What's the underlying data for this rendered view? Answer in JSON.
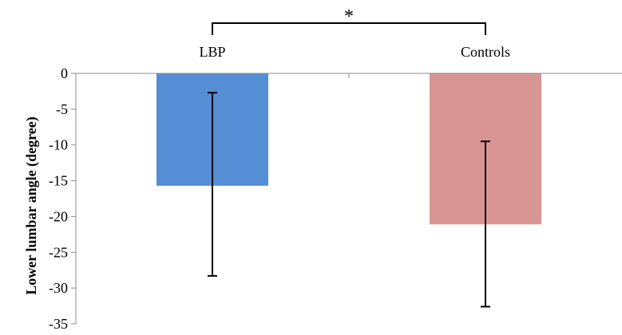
{
  "chart_data": {
    "type": "bar",
    "categories": [
      "LBP",
      "Controls"
    ],
    "values": [
      -15.7,
      -21.1
    ],
    "error_low": [
      -28.3,
      -32.6
    ],
    "error_high": [
      -2.7,
      -9.5
    ],
    "ylabel": "Lower lumbar angle (degree)",
    "ylim": [
      -35,
      0
    ],
    "yticks": [
      0,
      -5,
      -10,
      -15,
      -20,
      -25,
      -30,
      -35
    ],
    "ytick_labels": [
      "0",
      "-5",
      "-10",
      "-15",
      "-20",
      "-25",
      "-30",
      "-35"
    ],
    "colors": [
      "#558ed5",
      "#d99594"
    ],
    "significance": {
      "label": "*",
      "between": [
        "LBP",
        "Controls"
      ]
    },
    "grid": false,
    "legend": "none"
  }
}
